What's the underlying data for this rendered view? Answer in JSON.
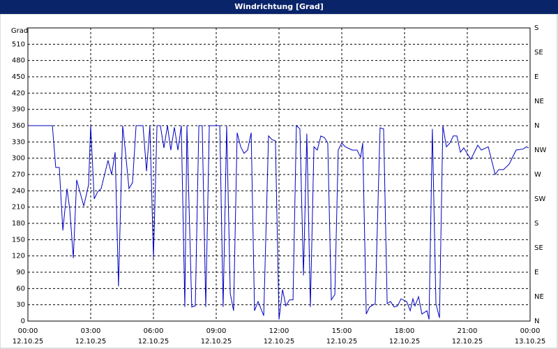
{
  "chart_data": {
    "type": "line",
    "title": "Windrichtung [Grad]",
    "y_label": "Grad",
    "x": [
      0,
      1.17,
      1.33,
      1.5,
      1.67,
      1.87,
      2.0,
      2.17,
      2.33,
      2.67,
      2.9,
      3.0,
      3.17,
      3.33,
      3.5,
      3.83,
      4.0,
      4.17,
      4.33,
      4.53,
      4.67,
      4.83,
      5.0,
      5.17,
      5.5,
      5.67,
      5.83,
      6.0,
      6.17,
      6.33,
      6.5,
      6.67,
      6.83,
      7.0,
      7.17,
      7.33,
      7.5,
      7.6,
      7.83,
      8.0,
      8.17,
      8.33,
      8.5,
      8.67,
      9.0,
      9.17,
      9.33,
      9.5,
      9.67,
      9.83,
      10.0,
      10.17,
      10.33,
      10.5,
      10.67,
      10.83,
      11.0,
      11.27,
      11.5,
      11.67,
      11.83,
      12.0,
      12.17,
      12.33,
      12.5,
      12.67,
      12.83,
      13.0,
      13.17,
      13.33,
      13.5,
      13.67,
      13.83,
      14.0,
      14.17,
      14.33,
      14.5,
      14.67,
      14.83,
      15.0,
      15.17,
      15.5,
      15.73,
      15.9,
      16.0,
      16.17,
      16.33,
      16.6,
      16.83,
      17.0,
      17.17,
      17.33,
      17.5,
      17.67,
      17.83,
      18.1,
      18.27,
      18.4,
      18.5,
      18.67,
      18.83,
      19.07,
      19.17,
      19.33,
      19.5,
      19.67,
      19.83,
      20.0,
      20.17,
      20.33,
      20.5,
      20.67,
      20.83,
      21.17,
      21.5,
      21.67,
      22.0,
      22.33,
      22.5,
      22.73,
      23.0,
      23.33,
      23.67,
      23.83,
      23.93
    ],
    "series": [
      {
        "color": "#0000c0",
        "values": [
          360,
          360,
          283,
          283,
          167,
          244,
          206,
          116,
          260,
          212,
          251,
          360,
          225,
          238,
          244,
          296,
          270,
          311,
          64,
          360,
          309,
          244,
          255,
          360,
          360,
          276,
          360,
          116,
          360,
          360,
          319,
          360,
          315,
          357,
          315,
          360,
          26,
          360,
          26,
          28,
          360,
          360,
          26,
          360,
          360,
          360,
          26,
          360,
          51,
          19,
          347,
          321,
          309,
          315,
          347,
          19,
          36,
          10,
          341,
          334,
          332,
          3,
          58,
          28,
          39,
          39,
          360,
          354,
          84,
          345,
          26,
          321,
          315,
          341,
          338,
          328,
          39,
          49,
          315,
          328,
          321,
          315,
          315,
          302,
          328,
          13,
          26,
          32,
          356,
          354,
          32,
          36,
          26,
          28,
          41,
          36,
          19,
          41,
          28,
          45,
          13,
          19,
          3,
          354,
          32,
          6,
          360,
          321,
          328,
          341,
          341,
          311,
          319,
          298,
          324,
          315,
          321,
          270,
          279,
          279,
          289,
          315,
          317,
          321,
          319
        ]
      }
    ],
    "xlim": [
      0,
      24
    ],
    "xticks": [
      {
        "value": 0,
        "label": "00:00",
        "date": "12.10.25"
      },
      {
        "value": 3,
        "label": "03:00",
        "date": "12.10.25"
      },
      {
        "value": 6,
        "label": "06:00",
        "date": "12.10.25"
      },
      {
        "value": 9,
        "label": "09:00",
        "date": "12.10.25"
      },
      {
        "value": 12,
        "label": "12:00",
        "date": "12.10.25"
      },
      {
        "value": 15,
        "label": "15:00",
        "date": "12.10.25"
      },
      {
        "value": 18,
        "label": "18:00",
        "date": "12.10.25"
      },
      {
        "value": 21,
        "label": "21:00",
        "date": "12.10.25"
      },
      {
        "value": 24,
        "label": "00:00",
        "date": "13.10.25"
      }
    ],
    "ylim": [
      0,
      540
    ],
    "yticks": [
      0,
      30,
      60,
      90,
      120,
      150,
      180,
      210,
      240,
      270,
      300,
      330,
      360,
      390,
      420,
      450,
      480,
      510
    ],
    "y2lim": [
      0,
      540
    ],
    "y2ticks": [
      {
        "value": 0,
        "label": "N"
      },
      {
        "value": 45,
        "label": "NE"
      },
      {
        "value": 90,
        "label": "E"
      },
      {
        "value": 135,
        "label": "SE"
      },
      {
        "value": 180,
        "label": "S"
      },
      {
        "value": 225,
        "label": "SW"
      },
      {
        "value": 270,
        "label": "W"
      },
      {
        "value": 315,
        "label": "NW"
      },
      {
        "value": 360,
        "label": "N"
      },
      {
        "value": 405,
        "label": "NE"
      },
      {
        "value": 450,
        "label": "E"
      },
      {
        "value": 495,
        "label": "SE"
      },
      {
        "value": 540,
        "label": "S"
      }
    ],
    "grid": true
  }
}
